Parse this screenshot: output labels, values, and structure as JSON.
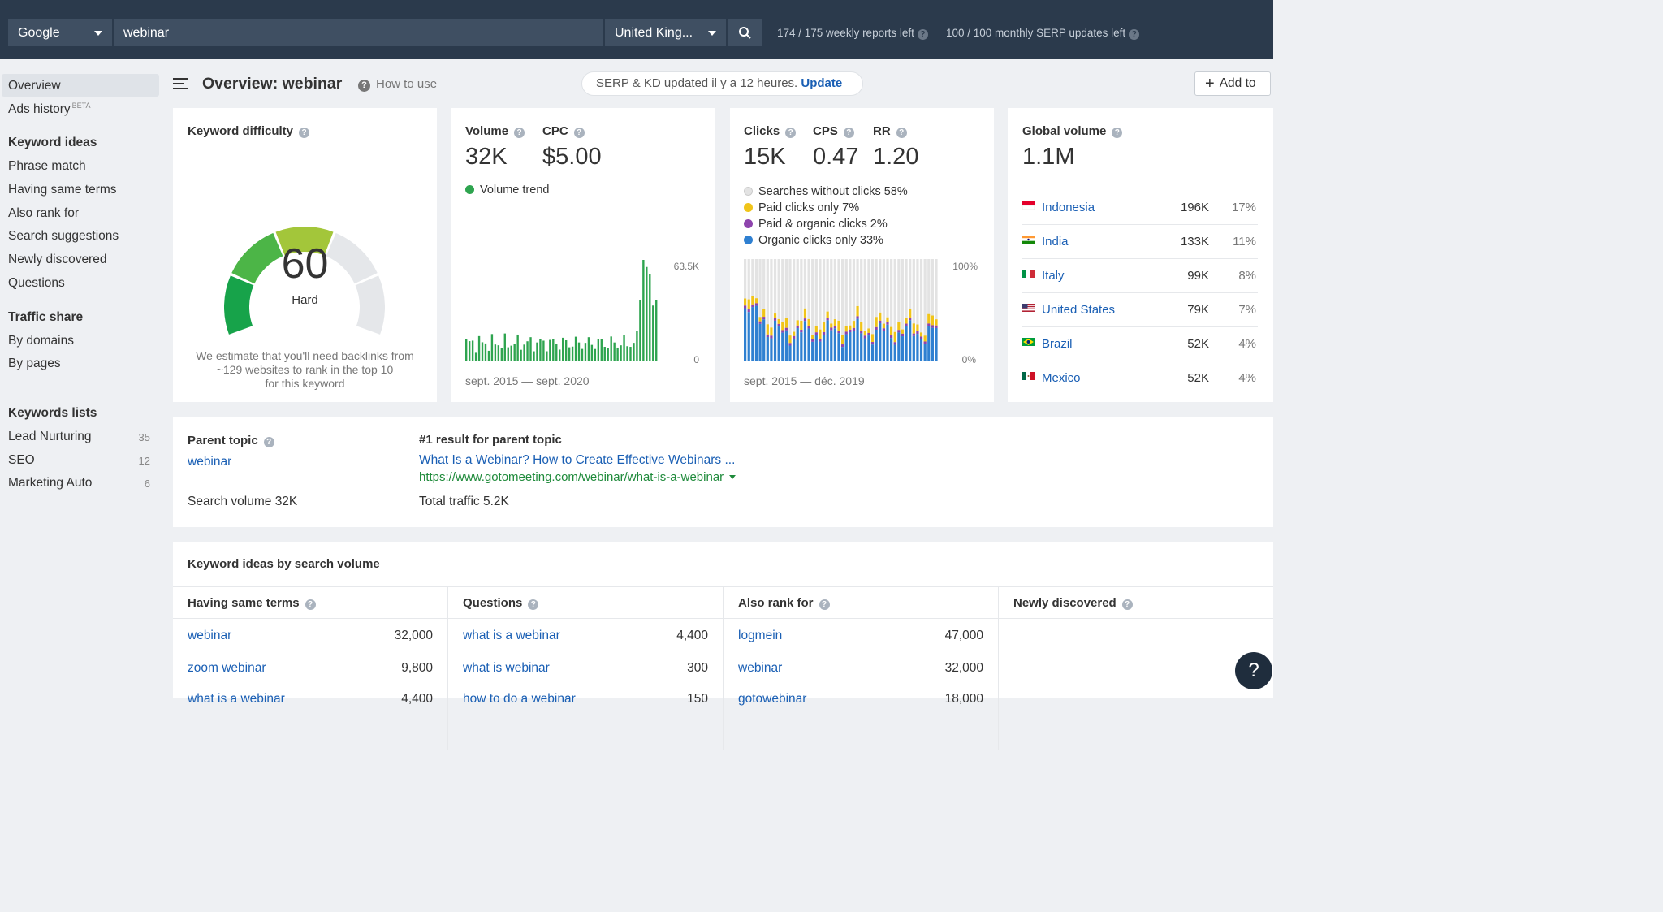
{
  "topbar": {
    "engine": "Google",
    "query": "webinar",
    "country": "United King...",
    "weekly_reports": "174 / 175 weekly reports left",
    "monthly_serp": "100 / 100 monthly SERP updates left"
  },
  "sidebar": {
    "overview": "Overview",
    "ads_history": "Ads history",
    "ads_badge": "BETA",
    "keyword_ideas_head": "Keyword ideas",
    "keyword_ideas": [
      "Phrase match",
      "Having same terms",
      "Also rank for",
      "Search suggestions",
      "Newly discovered",
      "Questions"
    ],
    "traffic_head": "Traffic share",
    "traffic": [
      "By domains",
      "By pages"
    ],
    "lists_head": "Keywords lists",
    "lists": [
      {
        "name": "Lead Nurturing",
        "count": "35"
      },
      {
        "name": "SEO",
        "count": "12"
      },
      {
        "name": "Marketing Auto",
        "count": "6"
      }
    ]
  },
  "header": {
    "title": "Overview: webinar",
    "how_to": "How to use",
    "serp_notice": "SERP & KD updated il y a 12 heures.",
    "update": "Update",
    "add_to": "Add to"
  },
  "kd": {
    "label": "Keyword difficulty",
    "value": "60",
    "value_num": 60,
    "rating": "Hard",
    "note_1": "We estimate that you'll need backlinks from",
    "note_2": "~129 websites to rank in the top 10",
    "note_3": "for this keyword"
  },
  "volume": {
    "label": "Volume",
    "value": "32K",
    "cpc_label": "CPC",
    "cpc": "$5.00",
    "trend_label": "Volume trend",
    "y_max": "63.5K",
    "y_min": "0",
    "range": "sept. 2015 — sept. 2020",
    "color": "#2ea44f"
  },
  "clicks": {
    "clicks_label": "Clicks",
    "clicks": "15K",
    "cps_label": "CPS",
    "cps": "0.47",
    "rr_label": "RR",
    "rr": "1.20",
    "legend": [
      {
        "label": "Searches without clicks 58%",
        "color": "#e3e3e3"
      },
      {
        "label": "Paid clicks only 7%",
        "color": "#f0c419"
      },
      {
        "label": "Paid & organic clicks 2%",
        "color": "#8e44ad"
      },
      {
        "label": "Organic clicks only 33%",
        "color": "#2f80d1"
      }
    ],
    "y_max": "100%",
    "y_min": "0%",
    "range": "sept. 2015 — déc. 2019"
  },
  "global": {
    "label": "Global volume",
    "value": "1.1M",
    "countries": [
      {
        "name": "Indonesia",
        "volume": "196K",
        "share": "17%"
      },
      {
        "name": "India",
        "volume": "133K",
        "share": "11%"
      },
      {
        "name": "Italy",
        "volume": "99K",
        "share": "8%"
      },
      {
        "name": "United States",
        "volume": "79K",
        "share": "7%"
      },
      {
        "name": "Brazil",
        "volume": "52K",
        "share": "4%"
      },
      {
        "name": "Mexico",
        "volume": "52K",
        "share": "4%"
      }
    ]
  },
  "parent": {
    "label": "Parent topic",
    "topic": "webinar",
    "search_volume": "Search volume 32K",
    "result_label": "#1 result for parent topic",
    "result_title": "What Is a Webinar? How to Create Effective Webinars ...",
    "result_url": "https://www.gotomeeting.com/webinar/what-is-a-webinar",
    "total_traffic": "Total traffic 5.2K"
  },
  "ideas": {
    "title": "Keyword ideas by search volume",
    "columns": [
      {
        "head": "Having same terms",
        "rows": [
          {
            "kw": "webinar",
            "v": "32,000"
          },
          {
            "kw": "zoom webinar",
            "v": "9,800"
          },
          {
            "kw": "what is a webinar",
            "v": "4,400"
          }
        ]
      },
      {
        "head": "Questions",
        "rows": [
          {
            "kw": "what is a webinar",
            "v": "4,400"
          },
          {
            "kw": "what is webinar",
            "v": "300"
          },
          {
            "kw": "how to do a webinar",
            "v": "150"
          }
        ]
      },
      {
        "head": "Also rank for",
        "rows": [
          {
            "kw": "logmein",
            "v": "47,000"
          },
          {
            "kw": "webinar",
            "v": "32,000"
          },
          {
            "kw": "gotowebinar",
            "v": "18,000"
          }
        ]
      },
      {
        "head": "Newly discovered",
        "rows": []
      }
    ]
  },
  "help": "?"
}
